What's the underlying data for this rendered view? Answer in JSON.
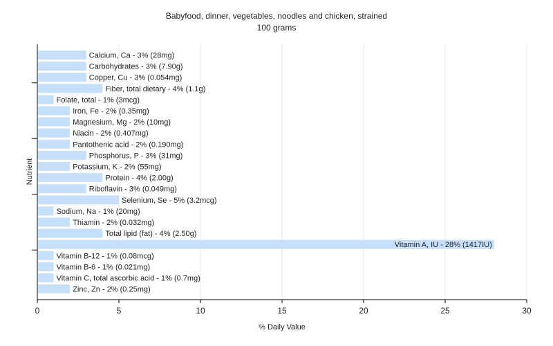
{
  "chart_data": {
    "type": "bar",
    "orientation": "horizontal",
    "title": "Babyfood, dinner, vegetables, noodles and chicken, strained",
    "subtitle": "100 grams",
    "xlabel": "% Daily Value",
    "ylabel": "Nutrient",
    "xlim": [
      0,
      30
    ],
    "xticks": [
      0,
      5,
      10,
      15,
      20,
      25,
      30
    ],
    "grid": "vertical",
    "bar_color": "#c6dffa",
    "categories": [
      "Calcium, Ca",
      "Carbohydrates",
      "Copper, Cu",
      "Fiber, total dietary",
      "Folate, total",
      "Iron, Fe",
      "Magnesium, Mg",
      "Niacin",
      "Pantothenic acid",
      "Phosphorus, P",
      "Potassium, K",
      "Protein",
      "Riboflavin",
      "Selenium, Se",
      "Sodium, Na",
      "Thiamin",
      "Total lipid (fat)",
      "Vitamin A, IU",
      "Vitamin B-12",
      "Vitamin B-6",
      "Vitamin C, total ascorbic acid",
      "Zinc, Zn"
    ],
    "values": [
      3,
      3,
      3,
      4,
      1,
      2,
      2,
      2,
      2,
      3,
      2,
      4,
      3,
      5,
      1,
      2,
      4,
      28,
      1,
      1,
      1,
      2
    ],
    "labels": [
      "Calcium, Ca - 3% (28mg)",
      "Carbohydrates - 3% (7.90g)",
      "Copper, Cu - 3% (0.054mg)",
      "Fiber, total dietary - 4% (1.1g)",
      "Folate, total - 1% (3mcg)",
      "Iron, Fe - 2% (0.35mg)",
      "Magnesium, Mg - 2% (10mg)",
      "Niacin - 2% (0.407mg)",
      "Pantothenic acid - 2% (0.190mg)",
      "Phosphorus, P - 3% (31mg)",
      "Potassium, K - 2% (55mg)",
      "Protein - 4% (2.00g)",
      "Riboflavin - 3% (0.049mg)",
      "Selenium, Se - 5% (3.2mcg)",
      "Sodium, Na - 1% (20mg)",
      "Thiamin - 2% (0.032mg)",
      "Total lipid (fat) - 4% (2.50g)",
      "Vitamin A, IU - 28% (1417IU)",
      "Vitamin B-12 - 1% (0.08mcg)",
      "Vitamin B-6 - 1% (0.021mg)",
      "Vitamin C, total ascorbic acid - 1% (0.7mg)",
      "Zinc, Zn - 2% (0.25mg)"
    ]
  }
}
